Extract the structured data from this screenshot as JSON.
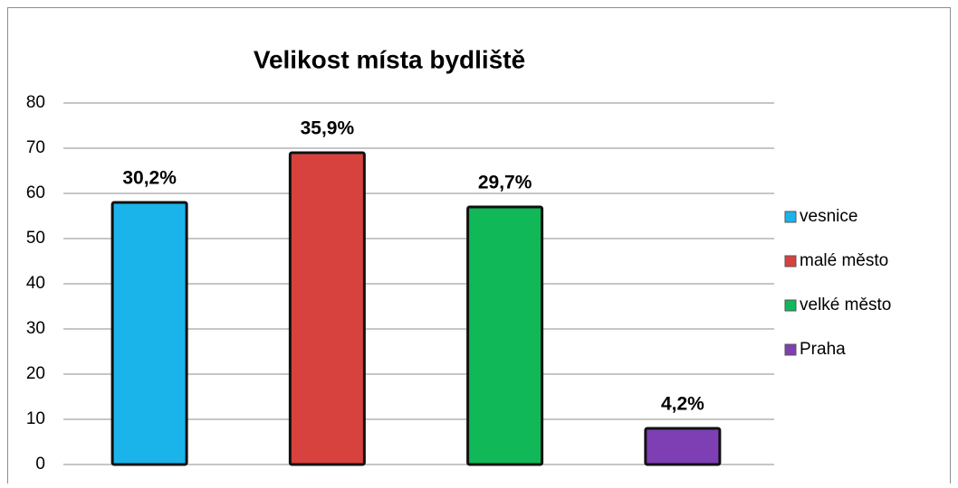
{
  "chart_data": {
    "type": "bar",
    "title": "Velikost místa bydliště",
    "series": [
      {
        "name": "vesnice",
        "color": "#1ab4ea",
        "values": [
          58
        ],
        "value_labels": [
          "30,2%"
        ]
      },
      {
        "name": "malé město",
        "color": "#d8423e",
        "values": [
          69
        ],
        "value_labels": [
          "35,9%"
        ]
      },
      {
        "name": "velké město",
        "color": "#10b858",
        "values": [
          57
        ],
        "value_labels": [
          "29,7%"
        ]
      },
      {
        "name": "Praha",
        "color": "#7d3fb3",
        "values": [
          8
        ],
        "value_labels": [
          "4,2%"
        ]
      }
    ],
    "ylim": [
      0,
      80
    ],
    "yticks": [
      0,
      10,
      20,
      30,
      40,
      50,
      60,
      70,
      80
    ],
    "grid": true,
    "legend": "right"
  }
}
